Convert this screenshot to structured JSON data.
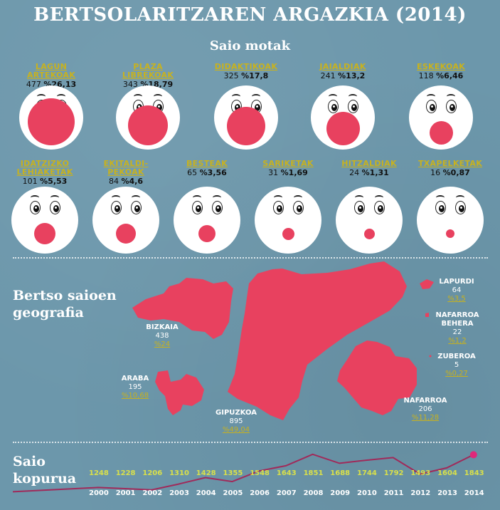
{
  "title": "BERTSOLARITZAREN ARGAZKIA (2014)",
  "saio_motak": {
    "heading": "Saio motak",
    "items": [
      {
        "label": "LAGUN ARTEKOAK",
        "count": "477",
        "pct": "%26,13",
        "share": 26.13
      },
      {
        "label": "PLAZA LIBREKOAK",
        "count": "343",
        "pct": "%18,79",
        "share": 18.79
      },
      {
        "label": "DIDAKTIKOAK",
        "count": "325",
        "pct": "%17,8",
        "share": 17.8
      },
      {
        "label": "JAIALDIAK",
        "count": "241",
        "pct": "%13,2",
        "share": 13.2
      },
      {
        "label": "ESKEKOAK",
        "count": "118",
        "pct": "%6,46",
        "share": 6.46
      },
      {
        "label": "IDATZIZKO LEHIAKETAK",
        "count": "101",
        "pct": "%5,53",
        "share": 5.53
      },
      {
        "label": "EKITALDI-PEKOAK",
        "count": "84",
        "pct": "%4,6",
        "share": 4.6
      },
      {
        "label": "BESTEAK",
        "count": "65",
        "pct": "%3,56",
        "share": 3.56
      },
      {
        "label": "SARIKETAK",
        "count": "31",
        "pct": "%1,69",
        "share": 1.69
      },
      {
        "label": "HITZALDIAK",
        "count": "24",
        "pct": "%1,31",
        "share": 1.31
      },
      {
        "label": "TXAPELKETAK",
        "count": "16",
        "pct": "%0,87",
        "share": 0.87
      }
    ]
  },
  "geografia": {
    "heading_line1": "Bertso saioen",
    "heading_line2": "geografia",
    "regions": [
      {
        "name": "BIZKAIA",
        "count": "438",
        "pct": "%24"
      },
      {
        "name": "ARABA",
        "count": "195",
        "pct": "%10,68"
      },
      {
        "name": "GIPUZKOA",
        "count": "895",
        "pct": "%49,04"
      },
      {
        "name": "NAFARROA",
        "count": "206",
        "pct": "%11,28"
      },
      {
        "name": "LAPURDI",
        "count": "64",
        "pct": "%3,5"
      },
      {
        "name_line1": "NAFARROA",
        "name_line2": "BEHERA",
        "count": "22",
        "pct": "%1,2"
      },
      {
        "name": "ZUBEROA",
        "count": "5",
        "pct": "%0,27"
      }
    ],
    "map_color": "#e8415f"
  },
  "kopurua": {
    "heading_line1": "Saio",
    "heading_line2": "kopurua",
    "line_color": "#a02a5a",
    "years": [
      "2000",
      "2001",
      "2002",
      "2003",
      "2004",
      "2005",
      "2006",
      "2007",
      "2008",
      "2009",
      "2010",
      "2011",
      "2012",
      "2013",
      "2014"
    ],
    "values": [
      "1248",
      "1228",
      "1206",
      "1310",
      "1428",
      "1355",
      "1548",
      "1643",
      "1851",
      "1688",
      "1744",
      "1792",
      "1493",
      "1604",
      "1843"
    ]
  },
  "colors": {
    "background": "#6c97ab",
    "accent": "#e8415f",
    "label": "#c8b21e",
    "value_line": "#d9e04a"
  }
}
